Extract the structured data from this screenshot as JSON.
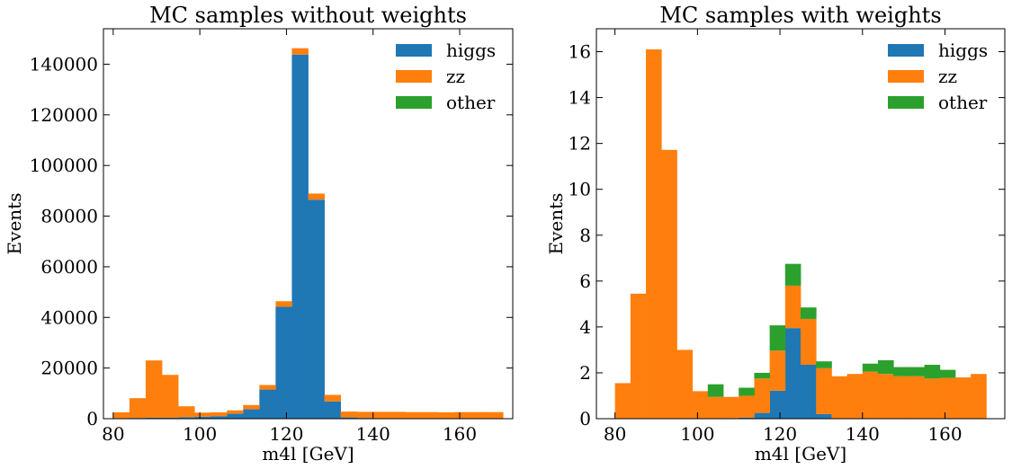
{
  "chart_data": [
    {
      "type": "bar",
      "stacked": true,
      "title": "MC samples without weights",
      "xlabel": "m4l [GeV]",
      "ylabel": "Events",
      "xlim": [
        77.75,
        172.25
      ],
      "ylim": [
        0,
        154000
      ],
      "xticks": [
        80,
        100,
        120,
        140,
        160
      ],
      "yticks": [
        0,
        20000,
        40000,
        60000,
        80000,
        100000,
        120000,
        140000
      ],
      "legend_position": "top-right",
      "bin_edges": [
        80.0,
        83.75,
        87.5,
        91.25,
        95.0,
        98.75,
        102.5,
        106.25,
        110.0,
        113.75,
        117.5,
        121.25,
        125.0,
        128.75,
        132.5,
        136.25,
        140.0,
        143.75,
        147.5,
        151.25,
        155.0,
        158.75,
        162.5,
        166.25,
        170.0
      ],
      "series": [
        {
          "name": "higgs",
          "color": "#1f77b4",
          "values": [
            200,
            300,
            400,
            400,
            600,
            800,
            1000,
            2000,
            3700,
            11500,
            44200,
            143800,
            86500,
            6800,
            500,
            300,
            100,
            100,
            100,
            100,
            100,
            100,
            100,
            100
          ]
        },
        {
          "name": "zz",
          "color": "#ff7f0e",
          "values": [
            2300,
            7800,
            22600,
            16900,
            4300,
            1600,
            1500,
            1300,
            1700,
            1800,
            2200,
            2500,
            2400,
            2600,
            2300,
            2400,
            2600,
            2600,
            2500,
            2500,
            2400,
            2500,
            2500,
            2500
          ]
        },
        {
          "name": "other",
          "color": "#2ca02c",
          "values": [
            0,
            0,
            0,
            0,
            0,
            0,
            0,
            0,
            0,
            0,
            0,
            0,
            0,
            0,
            0,
            0,
            0,
            0,
            0,
            0,
            0,
            0,
            0,
            0
          ]
        }
      ]
    },
    {
      "type": "bar",
      "stacked": true,
      "title": "MC samples with weights",
      "xlabel": "m4l [GeV]",
      "ylabel": "Events",
      "xlim": [
        75.5,
        174.5
      ],
      "ylim": [
        0,
        17
      ],
      "xticks": [
        80,
        100,
        120,
        140,
        160
      ],
      "yticks": [
        0,
        2,
        4,
        6,
        8,
        10,
        12,
        14,
        16
      ],
      "legend_position": "top-right",
      "bin_edges": [
        80.0,
        83.75,
        87.5,
        91.25,
        95.0,
        98.75,
        102.5,
        106.25,
        110.0,
        113.75,
        117.5,
        121.25,
        125.0,
        128.75,
        132.5,
        136.25,
        140.0,
        143.75,
        147.5,
        151.25,
        155.0,
        158.75,
        162.5,
        166.25,
        170.0
      ],
      "series": [
        {
          "name": "higgs",
          "color": "#1f77b4",
          "values": [
            0,
            0,
            0,
            0,
            0,
            0,
            0,
            0.03,
            0.05,
            0.25,
            1.22,
            3.95,
            2.35,
            0.2,
            0,
            0,
            0,
            0,
            0,
            0,
            0,
            0,
            0,
            0
          ]
        },
        {
          "name": "zz",
          "color": "#ff7f0e",
          "values": [
            1.55,
            5.45,
            16.1,
            11.72,
            3.0,
            1.2,
            0.95,
            0.92,
            0.95,
            1.5,
            1.75,
            1.85,
            2.0,
            2.0,
            1.85,
            1.95,
            2.05,
            1.95,
            1.85,
            1.85,
            1.75,
            1.78,
            1.8,
            1.95
          ]
        },
        {
          "name": "other",
          "color": "#2ca02c",
          "values": [
            0,
            0,
            0,
            0,
            0,
            0,
            0.55,
            0,
            0.35,
            0.25,
            1.1,
            0.95,
            0.5,
            0.3,
            0,
            0,
            0.35,
            0.6,
            0.4,
            0.4,
            0.6,
            0.35,
            0,
            0
          ]
        }
      ]
    }
  ]
}
